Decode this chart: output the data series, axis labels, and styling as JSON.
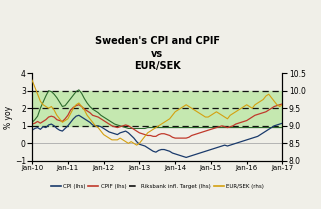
{
  "title": "Sweden's CPI and CPIF\nvs\nEUR/SEK",
  "ylabel_left": "% yoy",
  "ylim_left": [
    -1.0,
    4.0
  ],
  "ylim_right": [
    8.0,
    10.5
  ],
  "yticks_left": [
    -1.0,
    0.0,
    1.0,
    2.0,
    3.0,
    4.0
  ],
  "yticks_right": [
    8.0,
    8.5,
    9.0,
    9.5,
    10.0,
    10.5
  ],
  "xtick_labels": [
    "Jan-10",
    "Jan-11",
    "Jan-12",
    "Jan-13",
    "Jan-14",
    "Jan-15",
    "Jan-16",
    "Jan-17"
  ],
  "riksbank_band_low": 1.0,
  "riksbank_band_high": 3.0,
  "riksbank_target": 2.0,
  "colors": {
    "CPI": "#1a3a6b",
    "CPIF": "#c0392b",
    "EURSEK": "#d4a010",
    "dark_green": "#2d6b2d",
    "target": "#111111",
    "band_fill": "#c5e8b0"
  },
  "background": "#f0efe8",
  "cpi": [
    0.75,
    0.85,
    0.9,
    0.8,
    0.95,
    0.9,
    1.05,
    1.1,
    1.0,
    0.85,
    0.75,
    0.7,
    0.85,
    1.0,
    1.2,
    1.4,
    1.55,
    1.6,
    1.5,
    1.4,
    1.3,
    1.2,
    1.05,
    1.0,
    1.0,
    0.95,
    0.85,
    0.75,
    0.65,
    0.6,
    0.55,
    0.5,
    0.6,
    0.65,
    0.7,
    0.6,
    0.45,
    0.3,
    0.1,
    -0.05,
    -0.1,
    -0.15,
    -0.25,
    -0.35,
    -0.45,
    -0.5,
    -0.4,
    -0.35,
    -0.35,
    -0.4,
    -0.45,
    -0.55,
    -0.6,
    -0.65,
    -0.7,
    -0.75,
    -0.8,
    -0.75,
    -0.7,
    -0.65,
    -0.6,
    -0.55,
    -0.5,
    -0.45,
    -0.4,
    -0.35,
    -0.3,
    -0.25,
    -0.2,
    -0.15,
    -0.1,
    -0.15,
    -0.1,
    -0.05,
    0.0,
    0.05,
    0.1,
    0.15,
    0.2,
    0.25,
    0.3,
    0.35,
    0.4,
    0.5,
    0.6,
    0.7,
    0.8,
    0.9,
    1.0,
    1.05,
    1.1,
    1.15
  ],
  "cpif": [
    1.1,
    1.15,
    1.25,
    1.15,
    1.25,
    1.35,
    1.5,
    1.55,
    1.5,
    1.35,
    1.3,
    1.25,
    1.4,
    1.6,
    1.9,
    2.05,
    2.15,
    2.2,
    2.1,
    1.95,
    1.85,
    1.75,
    1.6,
    1.55,
    1.5,
    1.4,
    1.3,
    1.2,
    1.1,
    1.0,
    0.95,
    0.9,
    0.95,
    1.0,
    1.05,
    1.0,
    0.9,
    0.8,
    0.7,
    0.6,
    0.55,
    0.5,
    0.45,
    0.45,
    0.4,
    0.4,
    0.5,
    0.55,
    0.55,
    0.5,
    0.45,
    0.35,
    0.3,
    0.3,
    0.3,
    0.3,
    0.3,
    0.35,
    0.45,
    0.5,
    0.55,
    0.6,
    0.65,
    0.7,
    0.75,
    0.8,
    0.85,
    0.9,
    0.95,
    1.0,
    0.95,
    0.9,
    0.95,
    1.0,
    1.1,
    1.15,
    1.2,
    1.25,
    1.3,
    1.4,
    1.5,
    1.6,
    1.65,
    1.7,
    1.75,
    1.8,
    1.9,
    2.0,
    2.1,
    2.15,
    2.2,
    2.25
  ],
  "eursek": [
    10.3,
    10.1,
    9.9,
    9.7,
    9.6,
    9.55,
    9.5,
    9.55,
    9.45,
    9.3,
    9.2,
    9.1,
    9.15,
    9.2,
    9.35,
    9.5,
    9.6,
    9.65,
    9.55,
    9.45,
    9.3,
    9.2,
    9.1,
    9.0,
    8.95,
    8.85,
    8.75,
    8.7,
    8.65,
    8.6,
    8.6,
    8.6,
    8.65,
    8.6,
    8.55,
    8.5,
    8.55,
    8.5,
    8.45,
    8.5,
    8.6,
    8.7,
    8.8,
    8.85,
    8.9,
    8.95,
    9.0,
    9.05,
    9.1,
    9.15,
    9.2,
    9.3,
    9.4,
    9.45,
    9.5,
    9.55,
    9.6,
    9.55,
    9.5,
    9.45,
    9.4,
    9.35,
    9.3,
    9.25,
    9.25,
    9.3,
    9.35,
    9.4,
    9.35,
    9.3,
    9.25,
    9.2,
    9.3,
    9.35,
    9.4,
    9.45,
    9.5,
    9.55,
    9.6,
    9.55,
    9.5,
    9.6,
    9.65,
    9.7,
    9.75,
    9.85,
    9.9,
    9.8,
    9.7,
    9.6,
    9.55,
    9.6
  ],
  "dark_green": [
    1.2,
    1.35,
    1.55,
    2.0,
    2.35,
    2.7,
    3.0,
    2.95,
    2.8,
    2.6,
    2.35,
    2.1,
    2.15,
    2.35,
    2.55,
    2.75,
    2.95,
    3.05,
    2.85,
    2.55,
    2.3,
    2.1,
    1.95,
    1.85,
    1.75,
    1.6,
    1.5,
    1.4,
    1.3,
    1.2,
    1.1,
    1.05,
    1.0,
    0.95,
    0.9,
    0.85,
    0.85,
    0.85,
    0.85,
    0.85,
    0.85,
    0.85,
    0.9,
    0.9,
    0.9,
    0.9,
    0.9,
    0.9,
    0.9,
    0.9,
    0.9,
    0.9,
    0.9,
    0.9,
    0.9,
    0.9,
    0.9,
    0.9,
    0.9,
    0.9,
    0.9,
    0.9,
    0.9,
    0.9,
    0.9,
    0.9,
    0.9,
    0.9,
    0.9,
    0.9,
    0.9,
    0.9,
    0.9,
    0.9,
    0.9,
    0.9,
    0.9,
    0.9,
    0.9,
    0.9,
    0.9,
    0.9,
    0.9,
    0.9,
    0.9,
    0.9,
    0.9,
    0.9,
    0.9,
    0.9,
    0.9,
    0.9
  ]
}
